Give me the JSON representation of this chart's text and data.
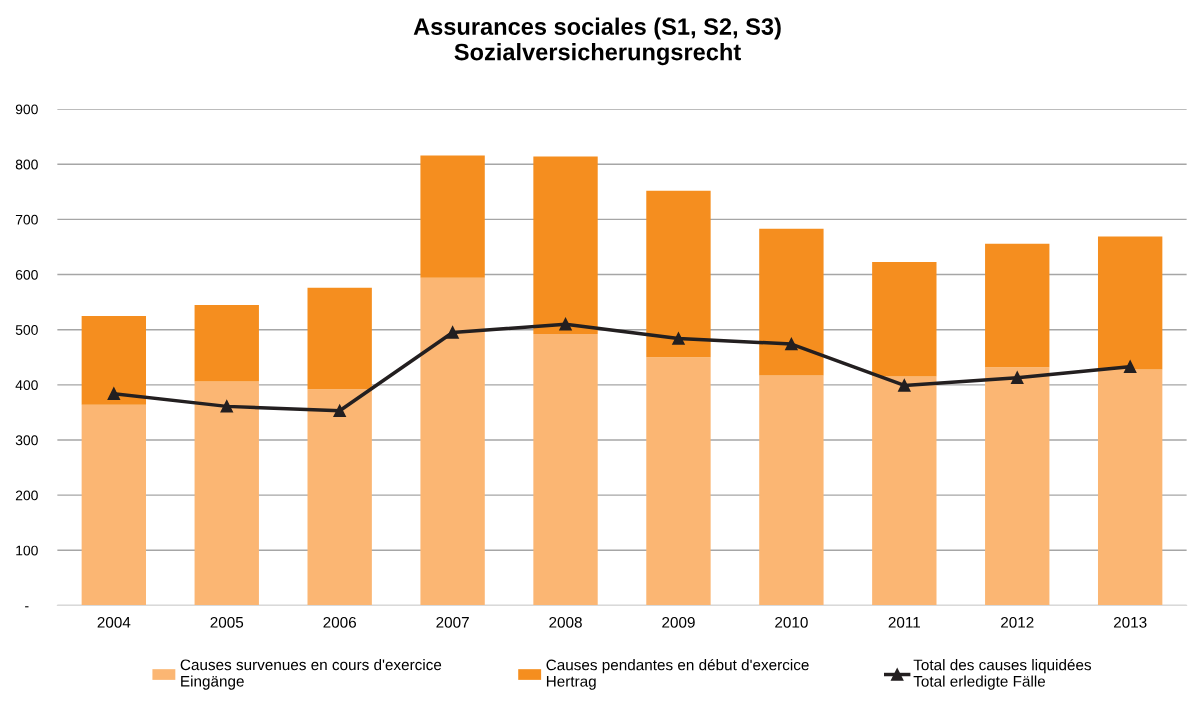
{
  "chart_data": {
    "type": "bar",
    "title": "Assurances sociales (S1, S2, S3)\nSozialversicherungsrecht",
    "categories": [
      "2004",
      "2005",
      "2006",
      "2007",
      "2008",
      "2009",
      "2010",
      "2011",
      "2012",
      "2013"
    ],
    "stacked": true,
    "series": [
      {
        "name": "Causes survenues en cours d'exercice\nEingänge",
        "color": "#fbb673",
        "values": [
          364,
          406,
          392,
          594,
          492,
          450,
          417,
          415,
          432,
          428
        ]
      },
      {
        "name": "Causes pendantes en début d'exercice\nHertrag",
        "color": "#f58e1f",
        "values": [
          161,
          139,
          184,
          222,
          322,
          302,
          266,
          208,
          224,
          241
        ]
      },
      {
        "name": "Total des causes liquidées\nTotal erledigte Fälle",
        "type": "line",
        "color": "#231f20",
        "marker": "triangle",
        "line_style": "solid",
        "values": [
          384,
          361,
          353,
          495,
          510,
          484,
          474,
          399,
          413,
          433
        ]
      }
    ],
    "ylim": [
      0,
      900
    ],
    "yticks": [
      {
        "value": 0,
        "label": "-"
      },
      100,
      200,
      300,
      400,
      500,
      600,
      700,
      800,
      900
    ],
    "grid": "y",
    "legend": "bottom"
  }
}
